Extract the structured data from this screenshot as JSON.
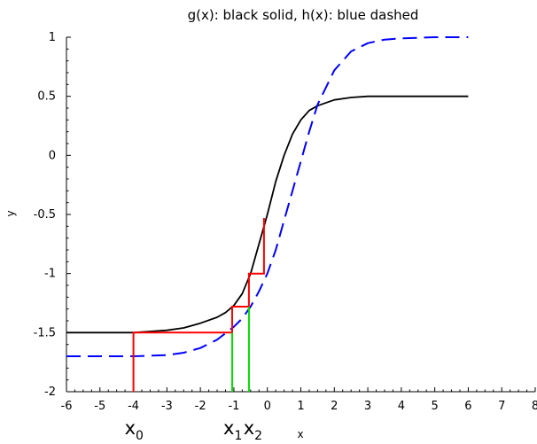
{
  "chart_data": {
    "type": "line",
    "title": "g(x): black solid, h(x): blue dashed",
    "xlabel": "x",
    "ylabel": "y",
    "xlim": [
      -6,
      8
    ],
    "ylim": [
      -2,
      1
    ],
    "grid": false,
    "x_ticks": [
      "-6",
      "-5",
      "-4",
      "-3",
      "-2",
      "-1",
      "0",
      "1",
      "2",
      "3",
      "4",
      "5",
      "6",
      "7",
      "8"
    ],
    "y_ticks": [
      "-2",
      "-1.5",
      "-1",
      "-0.5",
      "0",
      "0.5",
      "1"
    ],
    "series": [
      {
        "color": "#000000",
        "dash": "solid",
        "x": [
          -6,
          -5,
          -4,
          -3.5,
          -3,
          -2.5,
          -2,
          -1.5,
          -1.25,
          -1,
          -0.75,
          -0.5,
          -0.25,
          0,
          0.25,
          0.5,
          0.75,
          1,
          1.25,
          1.5,
          2,
          2.5,
          3,
          3.5,
          4,
          5,
          6
        ],
        "y": [
          -1.5,
          -1.5,
          -1.5,
          -1.49,
          -1.48,
          -1.46,
          -1.42,
          -1.37,
          -1.33,
          -1.27,
          -1.17,
          -1.0,
          -0.75,
          -0.5,
          -0.22,
          0.0,
          0.18,
          0.3,
          0.38,
          0.42,
          0.47,
          0.49,
          0.5,
          0.5,
          0.5,
          0.5,
          0.5
        ]
      },
      {
        "color": "#0000ff",
        "dash": "dashed",
        "x": [
          -6,
          -5,
          -4,
          -3,
          -2.5,
          -2,
          -1.5,
          -1,
          -0.75,
          -0.5,
          -0.25,
          0,
          0.25,
          0.5,
          0.75,
          1,
          1.25,
          1.5,
          2,
          2.5,
          3,
          3.5,
          4,
          5,
          6
        ],
        "y": [
          -1.7,
          -1.7,
          -1.7,
          -1.69,
          -1.67,
          -1.63,
          -1.56,
          -1.45,
          -1.38,
          -1.28,
          -1.15,
          -1.0,
          -0.8,
          -0.55,
          -0.3,
          -0.05,
          0.2,
          0.43,
          0.72,
          0.88,
          0.95,
          0.98,
          0.99,
          1.0,
          1.0
        ]
      }
    ],
    "cobweb": {
      "color": "#ff0000",
      "x": [
        -4,
        -4,
        -1.05,
        -1.05,
        -0.55,
        -0.55,
        -0.1,
        -0.1
      ],
      "y": [
        -2,
        -1.5,
        -1.5,
        -1.28,
        -1.28,
        -1.0,
        -1.0,
        -0.53
      ]
    },
    "markers": {
      "color": "#00dd00",
      "lines": [
        {
          "x": -1.05,
          "y0": -2,
          "y1": -1.5
        },
        {
          "x": -0.55,
          "y0": -2,
          "y1": -1.28
        }
      ]
    },
    "annotations": [
      {
        "x": -4,
        "base": "x",
        "sub": "0"
      },
      {
        "x": -1.05,
        "base": "x",
        "sub": "1"
      },
      {
        "x": -0.45,
        "base": "x",
        "sub": "2"
      }
    ]
  }
}
